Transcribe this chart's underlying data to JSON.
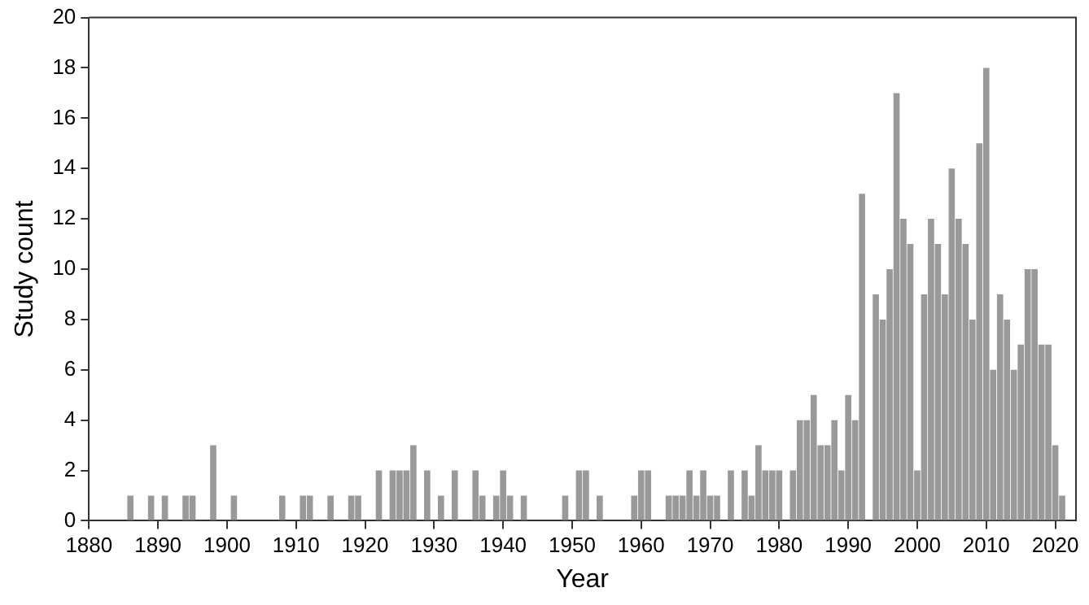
{
  "chart_data": {
    "type": "bar",
    "xlabel": "Year",
    "ylabel": "Study count",
    "color": "#999999",
    "x": [
      1886,
      1889,
      1891,
      1894,
      1895,
      1898,
      1901,
      1908,
      1911,
      1912,
      1915,
      1918,
      1919,
      1922,
      1924,
      1925,
      1926,
      1927,
      1929,
      1931,
      1933,
      1936,
      1937,
      1939,
      1940,
      1941,
      1943,
      1949,
      1951,
      1952,
      1954,
      1959,
      1960,
      1961,
      1964,
      1965,
      1966,
      1967,
      1968,
      1969,
      1970,
      1971,
      1973,
      1975,
      1976,
      1977,
      1978,
      1979,
      1980,
      1982,
      1983,
      1984,
      1985,
      1986,
      1987,
      1988,
      1989,
      1990,
      1991,
      1992,
      1994,
      1995,
      1996,
      1997,
      1998,
      1999,
      2000,
      2001,
      2002,
      2003,
      2004,
      2005,
      2006,
      2007,
      2008,
      2009,
      2010,
      2011,
      2012,
      2013,
      2014,
      2015,
      2016,
      2017,
      2018,
      2019,
      2020,
      2021
    ],
    "values": [
      1,
      1,
      1,
      1,
      1,
      3,
      1,
      1,
      1,
      1,
      1,
      1,
      1,
      2,
      2,
      2,
      2,
      3,
      2,
      1,
      2,
      2,
      1,
      1,
      2,
      1,
      1,
      1,
      2,
      2,
      1,
      1,
      2,
      2,
      1,
      1,
      1,
      2,
      1,
      2,
      1,
      1,
      2,
      2,
      1,
      3,
      2,
      2,
      2,
      2,
      4,
      4,
      5,
      3,
      3,
      4,
      2,
      5,
      4,
      13,
      9,
      8,
      10,
      17,
      12,
      11,
      2,
      9,
      12,
      11,
      9,
      14,
      12,
      11,
      8,
      15,
      18,
      6,
      9,
      8,
      6,
      7,
      10,
      10,
      7,
      7,
      3,
      1
    ],
    "xlim": [
      1880,
      2023
    ],
    "xticks": [
      1880,
      1890,
      1900,
      1910,
      1920,
      1930,
      1940,
      1950,
      1960,
      1970,
      1980,
      1990,
      2000,
      2010,
      2020
    ],
    "ylim": [
      0,
      20
    ],
    "yticks": [
      0,
      2,
      4,
      6,
      8,
      10,
      12,
      14,
      16,
      18,
      20
    ]
  }
}
